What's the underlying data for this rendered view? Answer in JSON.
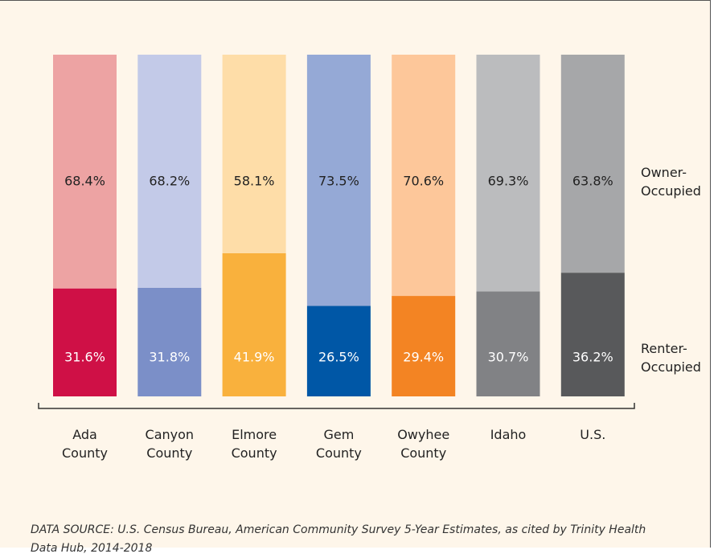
{
  "chart_data": {
    "type": "stacked_bar",
    "categories": [
      "Ada County",
      "Canyon County",
      "Elmore County",
      "Gem County",
      "Owyhee County",
      "Idaho",
      "U.S."
    ],
    "series": [
      {
        "name": "Renter-Occupied",
        "colors": [
          "#cf1046",
          "#7b8fc8",
          "#f9b13d",
          "#0057a6",
          "#f38423",
          "#818285",
          "#58595b"
        ],
        "values": [
          31.6,
          31.8,
          41.9,
          26.5,
          29.4,
          30.7,
          36.2
        ],
        "value_labels": [
          "31.6%",
          "31.8%",
          "41.9%",
          "26.5%",
          "29.4%",
          "30.7%",
          "36.2%"
        ]
      },
      {
        "name": "Owner-Occupied",
        "colors": [
          "#eda3a3",
          "#c3cae8",
          "#fedda8",
          "#95a9d6",
          "#fdc79a",
          "#bbbcbe",
          "#a6a7a9"
        ],
        "values": [
          68.4,
          68.2,
          58.1,
          73.5,
          70.6,
          69.3,
          63.8
        ],
        "value_labels": [
          "68.4%",
          "68.2%",
          "58.1%",
          "73.5%",
          "70.6%",
          "69.3%",
          "63.8%"
        ]
      }
    ],
    "ylim": [
      0,
      100
    ],
    "source": "DATA SOURCE: U.S. Census Bureau, American Community Survey 5-Year Estimates, as cited by Trinity Health Data Hub, 2014-2018"
  }
}
